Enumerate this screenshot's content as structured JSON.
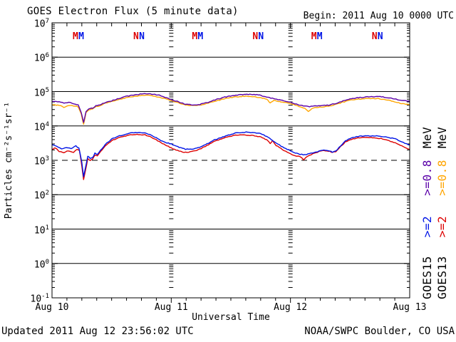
{
  "header": {
    "title": "GOES Electron Flux (5 minute data)",
    "begin_label": "Begin: 2011 Aug 10 0000 UTC"
  },
  "footer": {
    "updated": "Updated 2011 Aug 12 23:56:02 UTC",
    "source": "NOAA/SWPC Boulder, CO USA"
  },
  "axes": {
    "y_label": "Particles cm⁻²s⁻¹sr⁻¹",
    "x_label": "Universal Time",
    "x_tick_labels": [
      "Aug 10",
      "Aug 11",
      "Aug 12",
      "Aug 13"
    ],
    "y_tick_exponents": [
      7,
      6,
      5,
      4,
      3,
      2,
      1,
      0,
      -1
    ]
  },
  "legend": {
    "columns": [
      {
        "satellite": "GOES15",
        "ge2_label": ">=2",
        "ge2_color": "#0014e6",
        "ge08_label": ">=0.8",
        "ge08_color": "#5a00a8",
        "mev_label": "MeV"
      },
      {
        "satellite": "GOES13",
        "ge2_label": ">=2",
        "ge2_color": "#dd0000",
        "ge08_label": ">=0.8",
        "ge08_color": "#ffa500",
        "mev_label": "MeV"
      }
    ]
  },
  "colors": {
    "background": "#ffffff",
    "frame": "#000000",
    "goes15_2mev": "#0014e6",
    "goes13_2mev": "#dd0000",
    "goes15_08mev": "#5a00a8",
    "goes13_08mev": "#ffa500"
  },
  "chart_data": {
    "type": "line",
    "title": "GOES Electron Flux (5 minute data)",
    "xlabel": "Universal Time",
    "ylabel": "Particles cm-2 s-1 sr-1",
    "x_axis": {
      "unit": "days since 2011 Aug 10 0000 UTC",
      "range": [
        0,
        3
      ],
      "tick_labels": [
        "Aug 10",
        "Aug 11",
        "Aug 12",
        "Aug 13"
      ],
      "minor_tick_hours": 3,
      "day_guide_lines_at": [
        1,
        2
      ]
    },
    "y_axis": {
      "scale": "log",
      "range": [
        0.1,
        10000000
      ],
      "solid_gridline_exponents": [
        6,
        5,
        4,
        2,
        1,
        0
      ],
      "dashed_threshold": 1000
    },
    "markers": {
      "description": "satellite local midnight (M) and local noon (N)",
      "repeat_days": [
        0,
        1,
        2
      ],
      "items": [
        {
          "letter": "M",
          "satellite": "GOES13",
          "t": 0.197
        },
        {
          "letter": "M",
          "satellite": "GOES15",
          "t": 0.245
        },
        {
          "letter": "N",
          "satellite": "GOES13",
          "t": 0.705
        },
        {
          "letter": "N",
          "satellite": "GOES15",
          "t": 0.753
        }
      ]
    },
    "series": [
      {
        "name": "GOES13 >=0.8 MeV",
        "color": "#ffa500",
        "points": [
          [
            0,
            42000
          ],
          [
            0.06,
            40000
          ],
          [
            0.1,
            35000
          ],
          [
            0.14,
            40000
          ],
          [
            0.18,
            38000
          ],
          [
            0.22,
            36000
          ],
          [
            0.245,
            22000
          ],
          [
            0.265,
            11000
          ],
          [
            0.285,
            24000
          ],
          [
            0.31,
            30000
          ],
          [
            0.34,
            31000
          ],
          [
            0.37,
            36000
          ],
          [
            0.4,
            39000
          ],
          [
            0.45,
            46000
          ],
          [
            0.5,
            51000
          ],
          [
            0.56,
            59000
          ],
          [
            0.62,
            66000
          ],
          [
            0.68,
            72000
          ],
          [
            0.74,
            76000
          ],
          [
            0.8,
            78000
          ],
          [
            0.85,
            74000
          ],
          [
            0.9,
            69000
          ],
          [
            0.96,
            60000
          ],
          [
            1,
            55000
          ],
          [
            1.06,
            47000
          ],
          [
            1.12,
            41000
          ],
          [
            1.18,
            39000
          ],
          [
            1.24,
            40000
          ],
          [
            1.31,
            46000
          ],
          [
            1.38,
            54000
          ],
          [
            1.45,
            62000
          ],
          [
            1.52,
            69000
          ],
          [
            1.6,
            73000
          ],
          [
            1.67,
            72000
          ],
          [
            1.73,
            68000
          ],
          [
            1.8,
            60000
          ],
          [
            1.83,
            46000
          ],
          [
            1.86,
            55000
          ],
          [
            1.92,
            50000
          ],
          [
            2,
            45000
          ],
          [
            2.06,
            38000
          ],
          [
            2.12,
            33000
          ],
          [
            2.15,
            26000
          ],
          [
            2.18,
            32000
          ],
          [
            2.22,
            35000
          ],
          [
            2.26,
            36000
          ],
          [
            2.32,
            37000
          ],
          [
            2.38,
            42000
          ],
          [
            2.44,
            49000
          ],
          [
            2.5,
            56000
          ],
          [
            2.56,
            60000
          ],
          [
            2.62,
            62000
          ],
          [
            2.68,
            63000
          ],
          [
            2.74,
            62000
          ],
          [
            2.8,
            58000
          ],
          [
            2.86,
            52000
          ],
          [
            2.92,
            46000
          ],
          [
            3,
            41000
          ]
        ]
      },
      {
        "name": "GOES15 >=0.8 MeV",
        "color": "#5a00a8",
        "points": [
          [
            0,
            51000
          ],
          [
            0.06,
            50000
          ],
          [
            0.1,
            46000
          ],
          [
            0.14,
            49000
          ],
          [
            0.18,
            44000
          ],
          [
            0.22,
            41000
          ],
          [
            0.245,
            25000
          ],
          [
            0.265,
            12500
          ],
          [
            0.285,
            26000
          ],
          [
            0.31,
            32000
          ],
          [
            0.34,
            33000
          ],
          [
            0.37,
            39000
          ],
          [
            0.4,
            41000
          ],
          [
            0.45,
            49000
          ],
          [
            0.5,
            54000
          ],
          [
            0.56,
            63000
          ],
          [
            0.62,
            72000
          ],
          [
            0.68,
            79000
          ],
          [
            0.74,
            84000
          ],
          [
            0.8,
            87000
          ],
          [
            0.85,
            83000
          ],
          [
            0.9,
            78000
          ],
          [
            0.96,
            66000
          ],
          [
            1,
            59000
          ],
          [
            1.06,
            50000
          ],
          [
            1.12,
            43000
          ],
          [
            1.18,
            41000
          ],
          [
            1.24,
            42000
          ],
          [
            1.31,
            49000
          ],
          [
            1.38,
            59000
          ],
          [
            1.45,
            69000
          ],
          [
            1.52,
            77000
          ],
          [
            1.6,
            82000
          ],
          [
            1.67,
            83000
          ],
          [
            1.73,
            80000
          ],
          [
            1.8,
            70000
          ],
          [
            1.86,
            62000
          ],
          [
            1.92,
            56000
          ],
          [
            2,
            49000
          ],
          [
            2.06,
            42000
          ],
          [
            2.12,
            38000
          ],
          [
            2.16,
            36000
          ],
          [
            2.2,
            38000
          ],
          [
            2.26,
            39000
          ],
          [
            2.32,
            40000
          ],
          [
            2.38,
            45000
          ],
          [
            2.44,
            53000
          ],
          [
            2.5,
            62000
          ],
          [
            2.56,
            66000
          ],
          [
            2.62,
            69000
          ],
          [
            2.68,
            71000
          ],
          [
            2.74,
            72000
          ],
          [
            2.8,
            68000
          ],
          [
            2.86,
            62000
          ],
          [
            2.92,
            56000
          ],
          [
            3,
            52000
          ]
        ]
      },
      {
        "name": "GOES13 >=2 MeV",
        "color": "#dd0000",
        "points": [
          [
            0,
            2100
          ],
          [
            0.03,
            2300
          ],
          [
            0.06,
            1800
          ],
          [
            0.1,
            1700
          ],
          [
            0.14,
            1900
          ],
          [
            0.18,
            1700
          ],
          [
            0.21,
            2100
          ],
          [
            0.23,
            1900
          ],
          [
            0.25,
            700
          ],
          [
            0.265,
            270
          ],
          [
            0.28,
            500
          ],
          [
            0.3,
            1100
          ],
          [
            0.32,
            1000
          ],
          [
            0.34,
            1100
          ],
          [
            0.36,
            1400
          ],
          [
            0.38,
            1350
          ],
          [
            0.42,
            2000
          ],
          [
            0.46,
            2900
          ],
          [
            0.5,
            3700
          ],
          [
            0.54,
            4300
          ],
          [
            0.58,
            4800
          ],
          [
            0.62,
            5200
          ],
          [
            0.66,
            5500
          ],
          [
            0.7,
            5700
          ],
          [
            0.74,
            5600
          ],
          [
            0.78,
            5500
          ],
          [
            0.82,
            4900
          ],
          [
            0.86,
            4200
          ],
          [
            0.9,
            3500
          ],
          [
            0.94,
            2900
          ],
          [
            1,
            2300
          ],
          [
            1.04,
            2000
          ],
          [
            1.08,
            1800
          ],
          [
            1.12,
            1700
          ],
          [
            1.16,
            1750
          ],
          [
            1.2,
            1900
          ],
          [
            1.24,
            2100
          ],
          [
            1.3,
            2700
          ],
          [
            1.36,
            3500
          ],
          [
            1.42,
            4200
          ],
          [
            1.48,
            4900
          ],
          [
            1.54,
            5400
          ],
          [
            1.58,
            5600
          ],
          [
            1.62,
            5400
          ],
          [
            1.66,
            5300
          ],
          [
            1.7,
            5200
          ],
          [
            1.74,
            4900
          ],
          [
            1.8,
            4000
          ],
          [
            1.83,
            3100
          ],
          [
            1.85,
            3700
          ],
          [
            1.88,
            2700
          ],
          [
            1.92,
            2200
          ],
          [
            1.96,
            1800
          ],
          [
            2,
            1550
          ],
          [
            2.04,
            1350
          ],
          [
            2.08,
            1300
          ],
          [
            2.11,
            1050
          ],
          [
            2.14,
            1300
          ],
          [
            2.16,
            1400
          ],
          [
            2.2,
            1600
          ],
          [
            2.24,
            1800
          ],
          [
            2.28,
            1950
          ],
          [
            2.32,
            1850
          ],
          [
            2.35,
            1700
          ],
          [
            2.38,
            1800
          ],
          [
            2.42,
            2500
          ],
          [
            2.46,
            3400
          ],
          [
            2.5,
            4000
          ],
          [
            2.54,
            4300
          ],
          [
            2.58,
            4500
          ],
          [
            2.64,
            4600
          ],
          [
            2.7,
            4500
          ],
          [
            2.76,
            4300
          ],
          [
            2.8,
            4000
          ],
          [
            2.84,
            3500
          ],
          [
            2.88,
            3200
          ],
          [
            2.92,
            2800
          ],
          [
            2.96,
            2400
          ],
          [
            3,
            2100
          ]
        ]
      },
      {
        "name": "GOES15 >=2 MeV",
        "color": "#0014e6",
        "points": [
          [
            0,
            2800
          ],
          [
            0.04,
            2600
          ],
          [
            0.08,
            2100
          ],
          [
            0.12,
            2400
          ],
          [
            0.16,
            2200
          ],
          [
            0.2,
            2600
          ],
          [
            0.225,
            2300
          ],
          [
            0.25,
            900
          ],
          [
            0.265,
            340
          ],
          [
            0.28,
            600
          ],
          [
            0.3,
            1300
          ],
          [
            0.32,
            1150
          ],
          [
            0.34,
            1200
          ],
          [
            0.36,
            1600
          ],
          [
            0.38,
            1500
          ],
          [
            0.42,
            2200
          ],
          [
            0.46,
            3200
          ],
          [
            0.5,
            4100
          ],
          [
            0.54,
            4800
          ],
          [
            0.58,
            5300
          ],
          [
            0.62,
            5800
          ],
          [
            0.66,
            6200
          ],
          [
            0.7,
            6400
          ],
          [
            0.74,
            6300
          ],
          [
            0.78,
            6400
          ],
          [
            0.82,
            5600
          ],
          [
            0.86,
            4800
          ],
          [
            0.9,
            4000
          ],
          [
            0.94,
            3400
          ],
          [
            1,
            3000
          ],
          [
            1.04,
            2600
          ],
          [
            1.08,
            2300
          ],
          [
            1.12,
            2100
          ],
          [
            1.16,
            2100
          ],
          [
            1.2,
            2200
          ],
          [
            1.24,
            2400
          ],
          [
            1.3,
            3000
          ],
          [
            1.36,
            3900
          ],
          [
            1.42,
            4600
          ],
          [
            1.48,
            5400
          ],
          [
            1.54,
            6200
          ],
          [
            1.6,
            6600
          ],
          [
            1.64,
            6500
          ],
          [
            1.68,
            6400
          ],
          [
            1.74,
            6000
          ],
          [
            1.8,
            5000
          ],
          [
            1.84,
            4000
          ],
          [
            1.88,
            3200
          ],
          [
            1.92,
            2600
          ],
          [
            1.96,
            2200
          ],
          [
            2,
            1900
          ],
          [
            2.04,
            1650
          ],
          [
            2.08,
            1500
          ],
          [
            2.12,
            1450
          ],
          [
            2.16,
            1550
          ],
          [
            2.2,
            1700
          ],
          [
            2.24,
            1850
          ],
          [
            2.28,
            2000
          ],
          [
            2.32,
            1900
          ],
          [
            2.35,
            1750
          ],
          [
            2.38,
            1850
          ],
          [
            2.42,
            2600
          ],
          [
            2.46,
            3600
          ],
          [
            2.5,
            4300
          ],
          [
            2.54,
            4700
          ],
          [
            2.58,
            5000
          ],
          [
            2.64,
            5100
          ],
          [
            2.7,
            5200
          ],
          [
            2.76,
            5000
          ],
          [
            2.8,
            4800
          ],
          [
            2.84,
            4400
          ],
          [
            2.88,
            4300
          ],
          [
            2.92,
            3600
          ],
          [
            2.96,
            3100
          ],
          [
            3,
            2800
          ]
        ]
      }
    ]
  }
}
